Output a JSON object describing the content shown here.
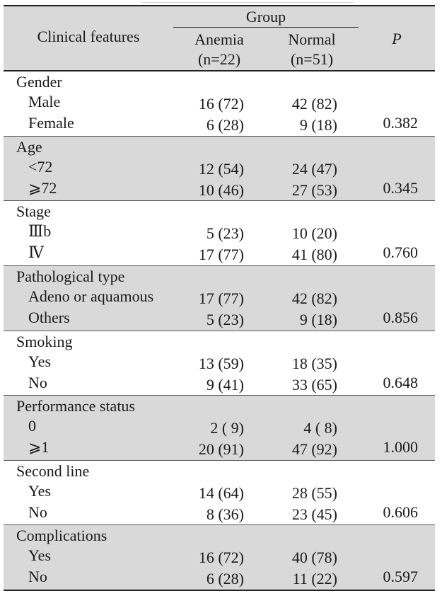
{
  "table": {
    "header": {
      "features_label": "Clinical features",
      "group_label": "Group",
      "anemia_label": "Anemia",
      "anemia_n": "(n=22)",
      "normal_label": "Normal",
      "normal_n": "(n=51)",
      "p_label": "P"
    },
    "sections": [
      {
        "category": "Gender",
        "shaded": false,
        "rows": [
          {
            "label": "Male",
            "anemia": "16 (72)",
            "normal": "42 (82)",
            "p": ""
          },
          {
            "label": "Female",
            "anemia": "6 (28)",
            "normal": "9 (18)",
            "p": "0.382"
          }
        ]
      },
      {
        "category": "Age",
        "shaded": true,
        "rows": [
          {
            "label": "<72",
            "anemia": "12 (54)",
            "normal": "24 (47)",
            "p": ""
          },
          {
            "label": "⩾72",
            "anemia": "10 (46)",
            "normal": "27 (53)",
            "p": "0.345"
          }
        ]
      },
      {
        "category": "Stage",
        "shaded": false,
        "rows": [
          {
            "label": "Ⅲb",
            "anemia": "5 (23)",
            "normal": "10 (20)",
            "p": ""
          },
          {
            "label": "Ⅳ",
            "anemia": "17 (77)",
            "normal": "41 (80)",
            "p": "0.760"
          }
        ]
      },
      {
        "category": "Pathological type",
        "shaded": true,
        "rows": [
          {
            "label": "Adeno or aquamous",
            "anemia": "17 (77)",
            "normal": "42 (82)",
            "p": ""
          },
          {
            "label": "Others",
            "anemia": "5 (23)",
            "normal": "9 (18)",
            "p": "0.856"
          }
        ]
      },
      {
        "category": "Smoking",
        "shaded": false,
        "rows": [
          {
            "label": "Yes",
            "anemia": "13 (59)",
            "normal": "18 (35)",
            "p": ""
          },
          {
            "label": "No",
            "anemia": "9 (41)",
            "normal": "33 (65)",
            "p": "0.648"
          }
        ]
      },
      {
        "category": "Performance status",
        "shaded": true,
        "rows": [
          {
            "label": "0",
            "anemia": "2 ( 9)",
            "normal": "4 ( 8)",
            "p": ""
          },
          {
            "label": "⩾1",
            "anemia": "20 (91)",
            "normal": "47 (92)",
            "p": "1.000"
          }
        ]
      },
      {
        "category": "Second line",
        "shaded": false,
        "rows": [
          {
            "label": "Yes",
            "anemia": "14 (64)",
            "normal": "28 (55)",
            "p": ""
          },
          {
            "label": "No",
            "anemia": "8 (36)",
            "normal": "23 (45)",
            "p": "0.606"
          }
        ]
      },
      {
        "category": "Complications",
        "shaded": true,
        "rows": [
          {
            "label": "Yes",
            "anemia": "16 (72)",
            "normal": "40 (78)",
            "p": ""
          },
          {
            "label": "No",
            "anemia": "6 (28)",
            "normal": "11 (22)",
            "p": "0.597"
          }
        ]
      }
    ]
  }
}
